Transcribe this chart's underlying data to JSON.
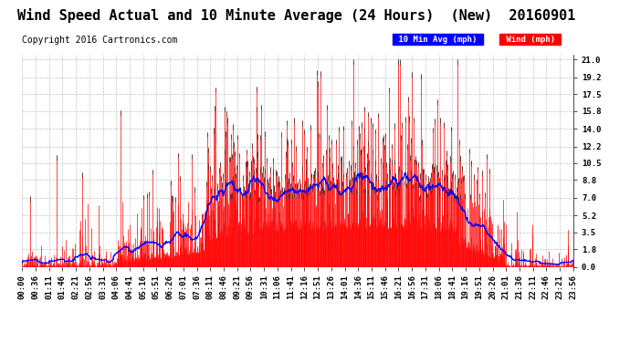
{
  "title": "Wind Speed Actual and 10 Minute Average (24 Hours)  (New)  20160901",
  "copyright": "Copyright 2016 Cartronics.com",
  "legend_labels": [
    "10 Min Avg (mph)",
    "Wind (mph)"
  ],
  "yticks": [
    0.0,
    1.8,
    3.5,
    5.2,
    7.0,
    8.8,
    10.5,
    12.2,
    14.0,
    15.8,
    17.5,
    19.2,
    21.0
  ],
  "ylim": [
    0.0,
    21.5
  ],
  "background_color": "#ffffff",
  "grid_color": "#aaaaaa",
  "title_fontsize": 11,
  "copyright_fontsize": 7,
  "tick_label_fontsize": 6.5,
  "xtick_labels": [
    "00:00",
    "00:36",
    "01:11",
    "01:46",
    "02:21",
    "02:56",
    "03:31",
    "04:06",
    "04:41",
    "05:16",
    "05:51",
    "06:26",
    "07:01",
    "07:36",
    "08:11",
    "08:46",
    "09:21",
    "09:56",
    "10:31",
    "11:06",
    "11:41",
    "12:16",
    "12:51",
    "13:26",
    "14:01",
    "14:36",
    "15:11",
    "15:46",
    "16:21",
    "16:56",
    "17:31",
    "18:06",
    "18:41",
    "19:16",
    "19:51",
    "20:26",
    "21:01",
    "21:36",
    "22:11",
    "22:46",
    "23:21",
    "23:56"
  ],
  "n_points": 1440,
  "seed": 99
}
